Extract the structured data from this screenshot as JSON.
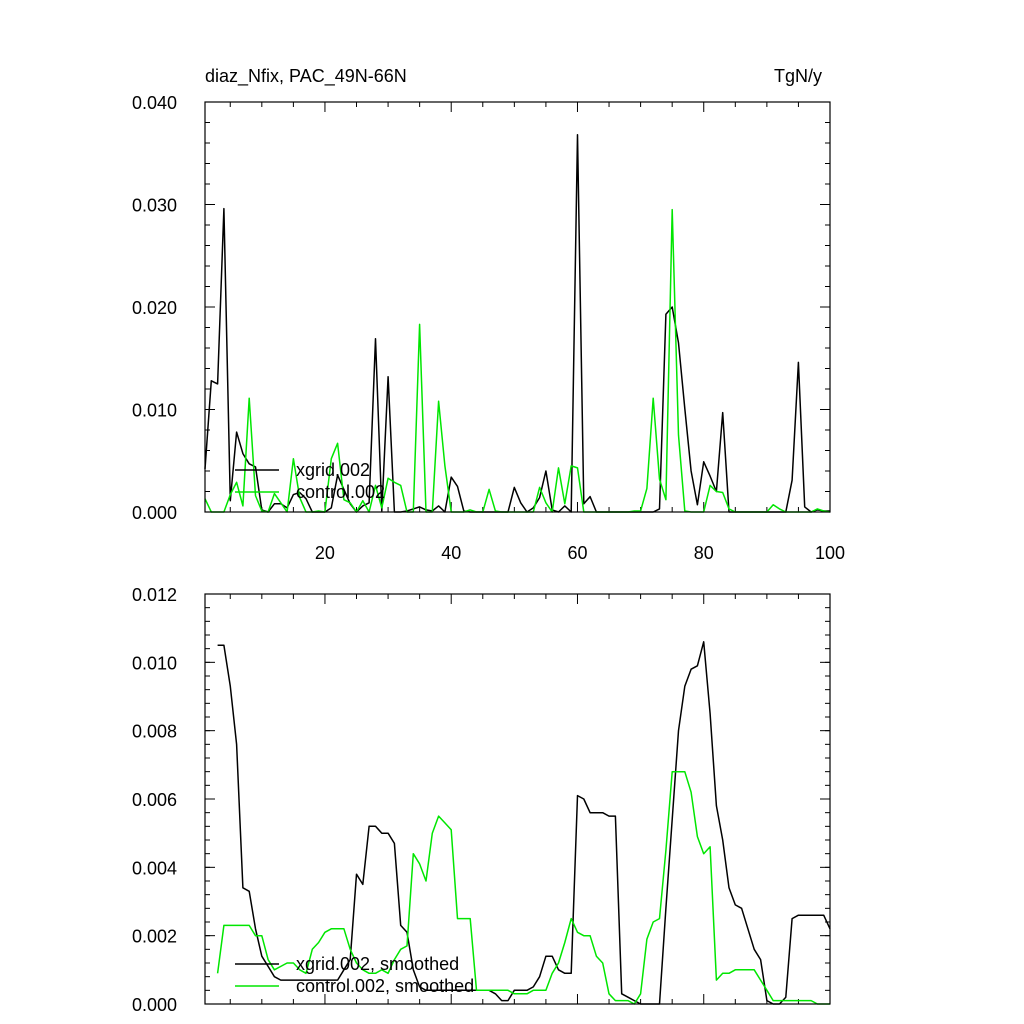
{
  "chart_data": [
    {
      "type": "line",
      "title": "diaz_Nfix, PAC_49N-66N",
      "units": "TgN/y",
      "xlim": [
        1,
        100
      ],
      "ylim": [
        0,
        0.04
      ],
      "xticks": [
        20,
        40,
        60,
        80,
        100
      ],
      "xtick_labels": [
        "20",
        "40",
        "60",
        "80",
        "100"
      ],
      "yticks": [
        0,
        0.01,
        0.02,
        0.03,
        0.04
      ],
      "ytick_labels": [
        "0.000",
        "0.010",
        "0.020",
        "0.030",
        "0.040"
      ],
      "legend": {
        "placement": "lower-left"
      },
      "series": [
        {
          "name": "xgrid.002",
          "color": "#000000",
          "values": [
            0.0042,
            0.0128,
            0.0125,
            0.0296,
            0.0011,
            0.0078,
            0.0057,
            0.0047,
            0.0044,
            0.0002,
            0.0,
            0.0008,
            0.0008,
            0.0004,
            0.0017,
            0.0019,
            0.0013,
            0.0,
            0.0,
            0.0,
            0.0004,
            0.0036,
            0.0022,
            0.0008,
            0.0,
            0.0006,
            0.0009,
            0.0169,
            0.0001,
            0.0132,
            0.0,
            0.0,
            0.0001,
            0.0003,
            0.0005,
            0.0002,
            0.0001,
            0.0006,
            0.0,
            0.0034,
            0.0025,
            0.0001,
            0.0,
            0.0,
            0.0,
            0.0,
            0.0,
            0.0,
            0.0,
            0.0024,
            0.0009,
            0.0,
            0.0004,
            0.0014,
            0.004,
            0.0002,
            0.0,
            0.0006,
            0.0,
            0.0368,
            0.0008,
            0.0015,
            0.0,
            0.0,
            0.0,
            0.0,
            0.0,
            0.0,
            0.0,
            0.0,
            0.0,
            0.0,
            0.0003,
            0.0193,
            0.02,
            0.0165,
            0.0101,
            0.004,
            0.0007,
            0.0049,
            0.0035,
            0.002,
            0.0097,
            0.0,
            0.0,
            0.0,
            0.0,
            0.0,
            0.0,
            0.0,
            0.0,
            0.0,
            0.0,
            0.0031,
            0.0146,
            0.0005,
            0.0,
            0.0002,
            0.0001,
            0.0001
          ]
        },
        {
          "name": "control.002",
          "color": "#00e600",
          "values": [
            0.0013,
            0.0,
            0.0,
            0.0,
            0.0017,
            0.0029,
            0.0006,
            0.0111,
            0.0016,
            0.0001,
            0.0,
            0.0018,
            0.0009,
            0.0,
            0.0052,
            0.0014,
            0.0,
            0.0,
            0.0001,
            0.0,
            0.0052,
            0.0067,
            0.0012,
            0.0009,
            0.0,
            0.0011,
            0.0,
            0.0026,
            0.0004,
            0.0033,
            0.0029,
            0.0026,
            0.0,
            0.0,
            0.0183,
            0.0,
            0.0,
            0.0108,
            0.0045,
            0.0,
            0.0,
            0.0,
            0.0002,
            0.0,
            0.0,
            0.0022,
            0.0001,
            0.0,
            0.0,
            0.0,
            0.0,
            0.0,
            0.0,
            0.0024,
            0.0009,
            0.0,
            0.0043,
            0.0008,
            0.0045,
            0.0043,
            0.0,
            0.0,
            0.0,
            0.0,
            0.0,
            0.0,
            0.0,
            0.0,
            0.0001,
            0.0001,
            0.0023,
            0.0111,
            0.0032,
            0.0012,
            0.0295,
            0.0075,
            0.0001,
            0.0,
            0.0,
            0.0,
            0.0026,
            0.002,
            0.0019,
            0.0003,
            0.0,
            0.0,
            0.0,
            0.0,
            0.0,
            0.0,
            0.0007,
            0.0003,
            0.0,
            0.0,
            0.0,
            0.0,
            0.0,
            0.0003,
            0.0001,
            0.0
          ]
        }
      ]
    },
    {
      "type": "line",
      "xlim": [
        1,
        100
      ],
      "ylim": [
        0,
        0.012
      ],
      "xticks": [
        20,
        40,
        60,
        80,
        100
      ],
      "yticks": [
        0,
        0.002,
        0.004,
        0.006,
        0.008,
        0.01,
        0.012
      ],
      "ytick_labels": [
        "0.000",
        "0.002",
        "0.004",
        "0.006",
        "0.008",
        "0.010",
        "0.012"
      ],
      "legend": {
        "placement": "lower-left"
      },
      "series": [
        {
          "name": "xgrid.002, smoothed",
          "color": "#000000",
          "x_start": 3,
          "values": [
            0.0105,
            0.0105,
            0.0093,
            0.0076,
            0.0034,
            0.0033,
            0.0022,
            0.0014,
            0.0011,
            0.0008,
            0.0007,
            0.0007,
            0.0007,
            0.0007,
            0.0007,
            0.0007,
            0.0007,
            0.0007,
            0.0007,
            0.0007,
            0.001,
            0.0013,
            0.0038,
            0.0035,
            0.0052,
            0.0052,
            0.005,
            0.005,
            0.0047,
            0.0023,
            0.0021,
            0.001,
            0.0005,
            0.0004,
            0.0004,
            0.0004,
            0.0004,
            0.0004,
            0.0004,
            0.0004,
            0.0004,
            0.0004,
            0.0004,
            0.0004,
            0.0003,
            0.0001,
            0.0001,
            0.0004,
            0.0004,
            0.0004,
            0.0005,
            0.0008,
            0.0014,
            0.0014,
            0.001,
            0.0009,
            0.0009,
            0.0061,
            0.006,
            0.0056,
            0.0056,
            0.0056,
            0.0055,
            0.0055,
            0.0003,
            0.0002,
            0.0001,
            0.0,
            0.0,
            0.0,
            0.0,
            0.0028,
            0.0054,
            0.008,
            0.0093,
            0.0098,
            0.0099,
            0.0106,
            0.0085,
            0.0058,
            0.0048,
            0.0034,
            0.0029,
            0.0028,
            0.0022,
            0.0016,
            0.0013,
            0.0001,
            0.0,
            0.0,
            0.0002,
            0.0025,
            0.0026,
            0.0026,
            0.0026,
            0.0026,
            0.0026,
            0.0022
          ]
        },
        {
          "name": "control.002, smoothed",
          "color": "#00e600",
          "x_start": 3,
          "values": [
            0.0009,
            0.0023,
            0.0023,
            0.0023,
            0.0023,
            0.0023,
            0.002,
            0.002,
            0.0013,
            0.001,
            0.0011,
            0.0012,
            0.0012,
            0.001,
            0.0009,
            0.0016,
            0.0018,
            0.0021,
            0.0022,
            0.0022,
            0.0022,
            0.0016,
            0.0012,
            0.001,
            0.0009,
            0.0009,
            0.001,
            0.0009,
            0.0013,
            0.0016,
            0.0017,
            0.0044,
            0.0041,
            0.0036,
            0.005,
            0.0055,
            0.0053,
            0.0051,
            0.0025,
            0.0025,
            0.0025,
            0.0004,
            0.0004,
            0.0004,
            0.0004,
            0.0004,
            0.0004,
            0.0003,
            0.0003,
            0.0003,
            0.0004,
            0.0004,
            0.0004,
            0.0009,
            0.0012,
            0.0018,
            0.0025,
            0.0021,
            0.002,
            0.002,
            0.0014,
            0.0012,
            0.0003,
            0.0001,
            0.0001,
            0.0001,
            0.0,
            0.0003,
            0.0019,
            0.0024,
            0.0025,
            0.0045,
            0.0068,
            0.0068,
            0.0068,
            0.0062,
            0.0049,
            0.0044,
            0.0046,
            0.0007,
            0.0009,
            0.0009,
            0.001,
            0.001,
            0.001,
            0.001,
            0.0007,
            0.0004,
            0.0001,
            0.0001,
            0.0001,
            0.0001,
            0.0001,
            0.0001,
            0.0001,
            0.0,
            0.0,
            0.0
          ]
        }
      ]
    }
  ]
}
